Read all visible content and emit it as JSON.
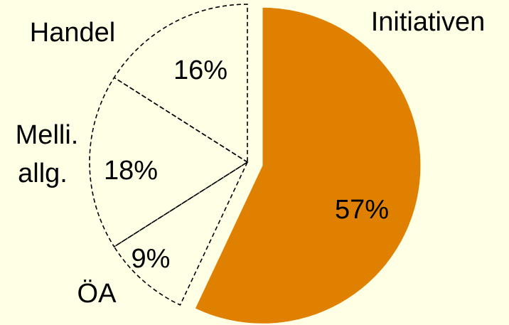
{
  "colors": {
    "background": "#ffffe5",
    "highlight": "#e08000",
    "outline": "#000000"
  },
  "chart_data": {
    "type": "pie",
    "exploded": "Initiativen",
    "slices": [
      {
        "category": "Initiativen",
        "value": 57,
        "label": "57%",
        "highlighted": true
      },
      {
        "category": "ÖA",
        "value": 9,
        "label": "9%",
        "highlighted": false
      },
      {
        "category_lines": [
          "Melli.",
          "allg."
        ],
        "value": 18,
        "label": "18%",
        "highlighted": false
      },
      {
        "category": "Handel",
        "value": 16,
        "label": "16%",
        "highlighted": false
      }
    ]
  }
}
